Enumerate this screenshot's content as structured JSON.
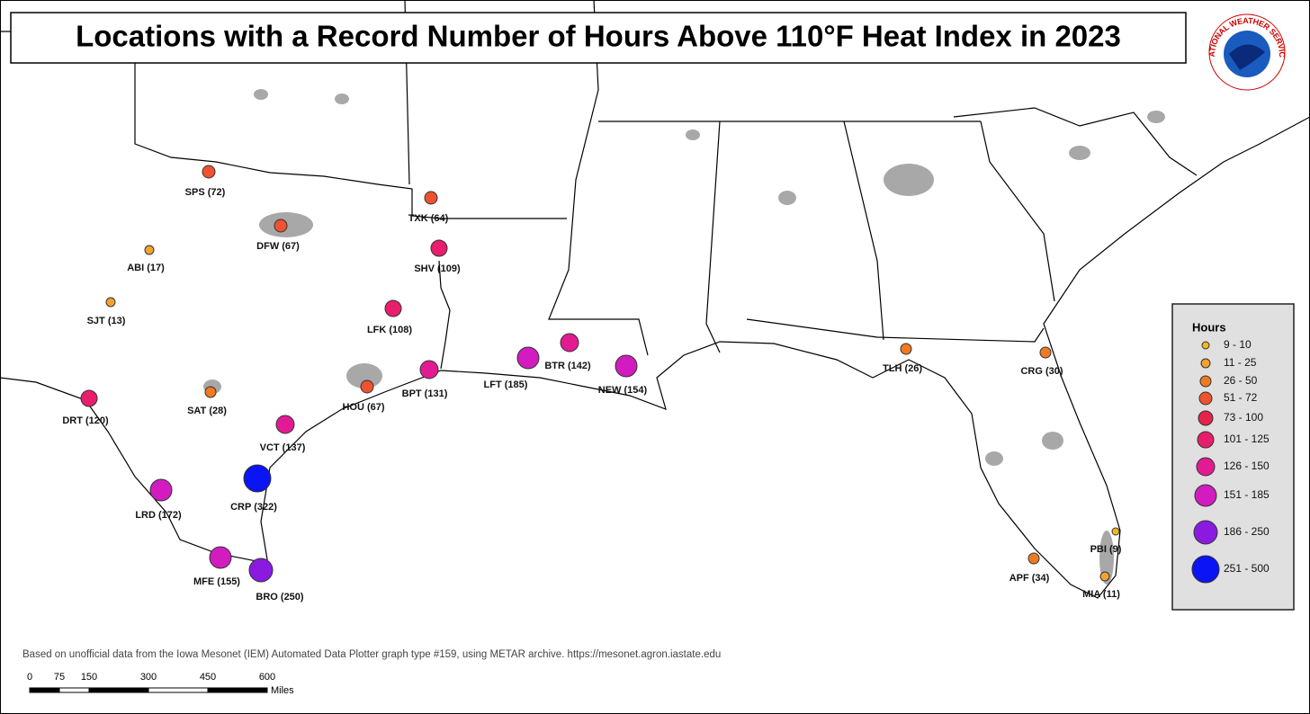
{
  "title": "Locations with a Record Number of Hours Above 110°F Heat Index in 2023",
  "logo_text": "NATIONAL WEATHER SERVICE",
  "legend": {
    "title": "Hours",
    "classes": [
      {
        "label": "9 - 10",
        "min": 9,
        "max": 10,
        "color": "#f2b81e"
      },
      {
        "label": "11 - 25",
        "min": 11,
        "max": 25,
        "color": "#f3a232"
      },
      {
        "label": "26 - 50",
        "min": 26,
        "max": 50,
        "color": "#f07a22"
      },
      {
        "label": "51 - 72",
        "min": 51,
        "max": 72,
        "color": "#ef5230"
      },
      {
        "label": "73 - 100",
        "min": 73,
        "max": 100,
        "color": "#e5234a"
      },
      {
        "label": "101 - 125",
        "min": 101,
        "max": 125,
        "color": "#e81e6c"
      },
      {
        "label": "126 - 150",
        "min": 126,
        "max": 150,
        "color": "#e21b93"
      },
      {
        "label": "151 - 185",
        "min": 151,
        "max": 185,
        "color": "#d21cc0"
      },
      {
        "label": "186 - 250",
        "min": 186,
        "max": 250,
        "color": "#8a1ae0"
      },
      {
        "label": "251 - 500",
        "min": 251,
        "max": 500,
        "color": "#0a14f5"
      }
    ]
  },
  "stations": [
    {
      "label": "SPS (72)",
      "hours": 72
    },
    {
      "label": "TXK (64)",
      "hours": 64
    },
    {
      "label": "DFW (67)",
      "hours": 67
    },
    {
      "label": "SHV (109)",
      "hours": 109
    },
    {
      "label": "ABI (17)",
      "hours": 17
    },
    {
      "label": "SJT (13)",
      "hours": 13
    },
    {
      "label": "LFK (108)",
      "hours": 108
    },
    {
      "label": "BTR (142)",
      "hours": 142
    },
    {
      "label": "LFT (185)",
      "hours": 185
    },
    {
      "label": "NEW (154)",
      "hours": 154
    },
    {
      "label": "BPT (131)",
      "hours": 131
    },
    {
      "label": "HOU (67)",
      "hours": 67
    },
    {
      "label": "SAT (28)",
      "hours": 28
    },
    {
      "label": "DRT (120)",
      "hours": 120
    },
    {
      "label": "VCT (137)",
      "hours": 137
    },
    {
      "label": "CRP (322)",
      "hours": 322
    },
    {
      "label": "LRD (172)",
      "hours": 172
    },
    {
      "label": "MFE (155)",
      "hours": 155
    },
    {
      "label": "BRO (250)",
      "hours": 250
    },
    {
      "label": "TLH (26)",
      "hours": 26
    },
    {
      "label": "CRG (30)",
      "hours": 30
    },
    {
      "label": "PBI (9)",
      "hours": 9
    },
    {
      "label": "APF (34)",
      "hours": 34
    },
    {
      "label": "MIA (11)",
      "hours": 11
    }
  ],
  "footer": "Based on unofficial data from the Iowa Mesonet (IEM) Automated Data Plotter graph type #159, using METAR archive. https://mesonet.agron.iastate.edu",
  "scale_bar": {
    "ticks": [
      0,
      75,
      150,
      300,
      450,
      600
    ],
    "unit": "Miles"
  }
}
